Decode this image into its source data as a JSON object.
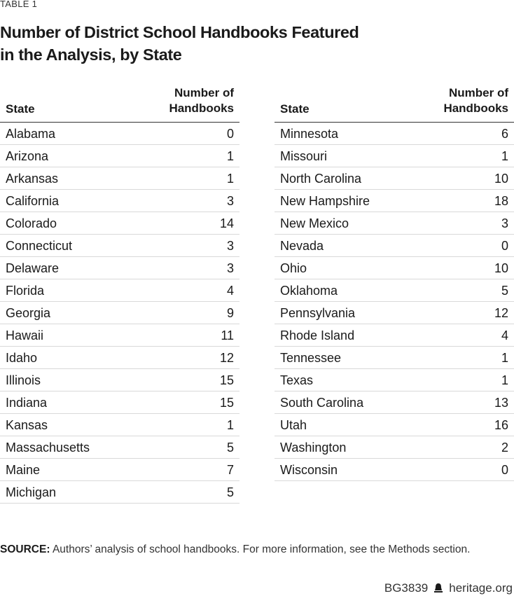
{
  "label": "TABLE 1",
  "title": [
    "Number of District School Handbooks Featured",
    "in the Analysis, by State"
  ],
  "table": {
    "header": {
      "state": "State",
      "count": [
        "Number of",
        "Handbooks"
      ]
    },
    "left": [
      [
        "Alabama",
        0
      ],
      [
        "Arizona",
        1
      ],
      [
        "Arkansas",
        1
      ],
      [
        "California",
        3
      ],
      [
        "Colorado",
        14
      ],
      [
        "Connecticut",
        3
      ],
      [
        "Delaware",
        3
      ],
      [
        "Florida",
        4
      ],
      [
        "Georgia",
        9
      ],
      [
        "Hawaii",
        11
      ],
      [
        "Idaho",
        12
      ],
      [
        "Illinois",
        15
      ],
      [
        "Indiana",
        15
      ],
      [
        "Kansas",
        1
      ],
      [
        "Massachusetts",
        5
      ],
      [
        "Maine",
        7
      ],
      [
        "Michigan",
        5
      ]
    ],
    "right": [
      [
        "Minnesota",
        6
      ],
      [
        "Missouri",
        1
      ],
      [
        "North Carolina",
        10
      ],
      [
        "New Hampshire",
        18
      ],
      [
        "New Mexico",
        3
      ],
      [
        "Nevada",
        0
      ],
      [
        "Ohio",
        10
      ],
      [
        "Oklahoma",
        5
      ],
      [
        "Pennsylvania",
        12
      ],
      [
        "Rhode Island",
        4
      ],
      [
        "Tennessee",
        1
      ],
      [
        "Texas",
        1
      ],
      [
        "South Carolina",
        13
      ],
      [
        "Utah",
        16
      ],
      [
        "Washington",
        2
      ],
      [
        "Wisconsin",
        0
      ]
    ]
  },
  "source": {
    "label": "SOURCE:",
    "text": "Authors’ analysis of school handbooks. For more information, see the Methods section."
  },
  "footer": {
    "code": "BG3839",
    "site": "heritage.org"
  }
}
